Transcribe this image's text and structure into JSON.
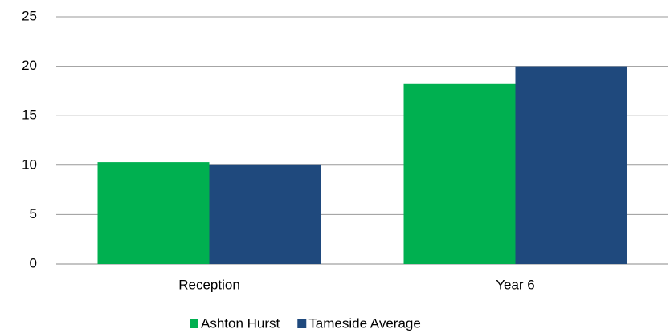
{
  "chart_data": {
    "type": "bar",
    "categories": [
      "Reception",
      "Year 6"
    ],
    "series": [
      {
        "name": "Ashton Hurst",
        "color": "#00b050",
        "values": [
          10.3,
          18.2
        ]
      },
      {
        "name": "Tameside Average",
        "color": "#1f497d",
        "values": [
          10.0,
          20.0
        ]
      }
    ],
    "ylim": [
      0,
      25
    ],
    "yticks": [
      0,
      5,
      10,
      15,
      20,
      25
    ],
    "grid": true,
    "legend": "bottom"
  }
}
